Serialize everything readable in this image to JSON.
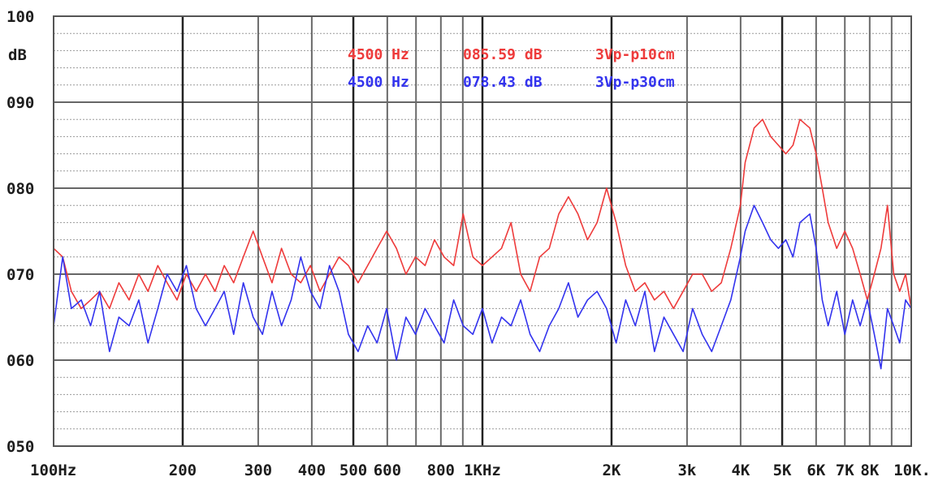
{
  "chart_data": {
    "type": "line",
    "title": "",
    "xlabel": "",
    "ylabel": "dB",
    "x_scale": "log",
    "xlim": [
      100,
      10000
    ],
    "ylim": [
      50,
      100
    ],
    "grid": true,
    "y_ticks": [
      {
        "value": 100,
        "label": "100"
      },
      {
        "value": 90,
        "label": "090"
      },
      {
        "value": 80,
        "label": "080"
      },
      {
        "value": 70,
        "label": "070"
      },
      {
        "value": 60,
        "label": "060"
      },
      {
        "value": 50,
        "label": "050"
      }
    ],
    "x_ticks": [
      {
        "value": 100,
        "label": "100Hz"
      },
      {
        "value": 200,
        "label": "200"
      },
      {
        "value": 300,
        "label": "300"
      },
      {
        "value": 400,
        "label": "400"
      },
      {
        "value": 500,
        "label": "500"
      },
      {
        "value": 600,
        "label": "600"
      },
      {
        "value": 800,
        "label": "800"
      },
      {
        "value": 1000,
        "label": "1KHz"
      },
      {
        "value": 2000,
        "label": "2K"
      },
      {
        "value": 3000,
        "label": "3k"
      },
      {
        "value": 4000,
        "label": "4K"
      },
      {
        "value": 5000,
        "label": "5K"
      },
      {
        "value": 6000,
        "label": "6K"
      },
      {
        "value": 7000,
        "label": "7K"
      },
      {
        "value": 8000,
        "label": "8K"
      },
      {
        "value": 10000,
        "label": "10K."
      }
    ],
    "legend": {
      "placement": "top-center",
      "entries": [
        {
          "series": 0,
          "freq": "4500 Hz",
          "level": "085.59 dB",
          "condition": "3Vp-p10cm"
        },
        {
          "series": 1,
          "freq": "4500 Hz",
          "level": "078.43 dB",
          "condition": "3Vp-p30cm"
        }
      ]
    },
    "colors": [
      "#ee3b3b",
      "#3333ee"
    ],
    "series": [
      {
        "points": [
          [
            100,
            73
          ],
          [
            105,
            72
          ],
          [
            110,
            68
          ],
          [
            116,
            66
          ],
          [
            122,
            67
          ],
          [
            128,
            68
          ],
          [
            135,
            66
          ],
          [
            142,
            69
          ],
          [
            150,
            67
          ],
          [
            158,
            70
          ],
          [
            166,
            68
          ],
          [
            175,
            71
          ],
          [
            184,
            69
          ],
          [
            194,
            67
          ],
          [
            204,
            70
          ],
          [
            215,
            68
          ],
          [
            226,
            70
          ],
          [
            238,
            68
          ],
          [
            250,
            71
          ],
          [
            263,
            69
          ],
          [
            277,
            72
          ],
          [
            292,
            75
          ],
          [
            307,
            72
          ],
          [
            323,
            69
          ],
          [
            340,
            73
          ],
          [
            358,
            70
          ],
          [
            377,
            69
          ],
          [
            397,
            71
          ],
          [
            418,
            68
          ],
          [
            440,
            70
          ],
          [
            463,
            72
          ],
          [
            487,
            71
          ],
          [
            513,
            69
          ],
          [
            540,
            71
          ],
          [
            568,
            73
          ],
          [
            598,
            75
          ],
          [
            630,
            73
          ],
          [
            663,
            70
          ],
          [
            698,
            72
          ],
          [
            735,
            71
          ],
          [
            773,
            74
          ],
          [
            814,
            72
          ],
          [
            857,
            71
          ],
          [
            902,
            77
          ],
          [
            950,
            72
          ],
          [
            1000,
            71
          ],
          [
            1053,
            72
          ],
          [
            1108,
            73
          ],
          [
            1166,
            76
          ],
          [
            1228,
            70
          ],
          [
            1292,
            68
          ],
          [
            1360,
            72
          ],
          [
            1432,
            73
          ],
          [
            1507,
            77
          ],
          [
            1587,
            79
          ],
          [
            1670,
            77
          ],
          [
            1758,
            74
          ],
          [
            1851,
            76
          ],
          [
            1948,
            80
          ],
          [
            2050,
            76
          ],
          [
            2158,
            71
          ],
          [
            2272,
            68
          ],
          [
            2392,
            69
          ],
          [
            2518,
            67
          ],
          [
            2650,
            68
          ],
          [
            2790,
            66
          ],
          [
            2937,
            68
          ],
          [
            3091,
            70
          ],
          [
            3254,
            70
          ],
          [
            3425,
            68
          ],
          [
            3606,
            69
          ],
          [
            3795,
            73
          ],
          [
            3995,
            78
          ],
          [
            4100,
            83
          ],
          [
            4300,
            87
          ],
          [
            4500,
            88
          ],
          [
            4700,
            86
          ],
          [
            4900,
            85
          ],
          [
            5100,
            84
          ],
          [
            5300,
            85
          ],
          [
            5500,
            88
          ],
          [
            5800,
            87
          ],
          [
            6000,
            84
          ],
          [
            6200,
            80
          ],
          [
            6400,
            76
          ],
          [
            6700,
            73
          ],
          [
            7000,
            75
          ],
          [
            7300,
            73
          ],
          [
            7600,
            70
          ],
          [
            7900,
            67
          ],
          [
            8200,
            70
          ],
          [
            8500,
            73
          ],
          [
            8800,
            78
          ],
          [
            9100,
            70
          ],
          [
            9400,
            68
          ],
          [
            9700,
            70
          ],
          [
            10000,
            66
          ]
        ]
      },
      {
        "points": [
          [
            100,
            64
          ],
          [
            105,
            72
          ],
          [
            110,
            66
          ],
          [
            116,
            67
          ],
          [
            122,
            64
          ],
          [
            128,
            68
          ],
          [
            135,
            61
          ],
          [
            142,
            65
          ],
          [
            150,
            64
          ],
          [
            158,
            67
          ],
          [
            166,
            62
          ],
          [
            175,
            66
          ],
          [
            184,
            70
          ],
          [
            194,
            68
          ],
          [
            204,
            71
          ],
          [
            215,
            66
          ],
          [
            226,
            64
          ],
          [
            238,
            66
          ],
          [
            250,
            68
          ],
          [
            263,
            63
          ],
          [
            277,
            69
          ],
          [
            292,
            65
          ],
          [
            307,
            63
          ],
          [
            323,
            68
          ],
          [
            340,
            64
          ],
          [
            358,
            67
          ],
          [
            377,
            72
          ],
          [
            397,
            68
          ],
          [
            418,
            66
          ],
          [
            440,
            71
          ],
          [
            463,
            68
          ],
          [
            487,
            63
          ],
          [
            513,
            61
          ],
          [
            540,
            64
          ],
          [
            568,
            62
          ],
          [
            598,
            66
          ],
          [
            630,
            60
          ],
          [
            663,
            65
          ],
          [
            698,
            63
          ],
          [
            735,
            66
          ],
          [
            773,
            64
          ],
          [
            814,
            62
          ],
          [
            857,
            67
          ],
          [
            902,
            64
          ],
          [
            950,
            63
          ],
          [
            1000,
            66
          ],
          [
            1053,
            62
          ],
          [
            1108,
            65
          ],
          [
            1166,
            64
          ],
          [
            1228,
            67
          ],
          [
            1292,
            63
          ],
          [
            1360,
            61
          ],
          [
            1432,
            64
          ],
          [
            1507,
            66
          ],
          [
            1587,
            69
          ],
          [
            1670,
            65
          ],
          [
            1758,
            67
          ],
          [
            1851,
            68
          ],
          [
            1948,
            66
          ],
          [
            2050,
            62
          ],
          [
            2158,
            67
          ],
          [
            2272,
            64
          ],
          [
            2392,
            68
          ],
          [
            2518,
            61
          ],
          [
            2650,
            65
          ],
          [
            2790,
            63
          ],
          [
            2937,
            61
          ],
          [
            3091,
            66
          ],
          [
            3254,
            63
          ],
          [
            3425,
            61
          ],
          [
            3606,
            64
          ],
          [
            3795,
            67
          ],
          [
            3995,
            72
          ],
          [
            4100,
            75
          ],
          [
            4300,
            78
          ],
          [
            4500,
            76
          ],
          [
            4700,
            74
          ],
          [
            4900,
            73
          ],
          [
            5100,
            74
          ],
          [
            5300,
            72
          ],
          [
            5500,
            76
          ],
          [
            5800,
            77
          ],
          [
            6000,
            73
          ],
          [
            6200,
            67
          ],
          [
            6400,
            64
          ],
          [
            6700,
            68
          ],
          [
            7000,
            63
          ],
          [
            7300,
            67
          ],
          [
            7600,
            64
          ],
          [
            7900,
            67
          ],
          [
            8200,
            63
          ],
          [
            8500,
            59
          ],
          [
            8800,
            66
          ],
          [
            9100,
            64
          ],
          [
            9400,
            62
          ],
          [
            9700,
            67
          ],
          [
            10000,
            66
          ]
        ]
      }
    ]
  }
}
